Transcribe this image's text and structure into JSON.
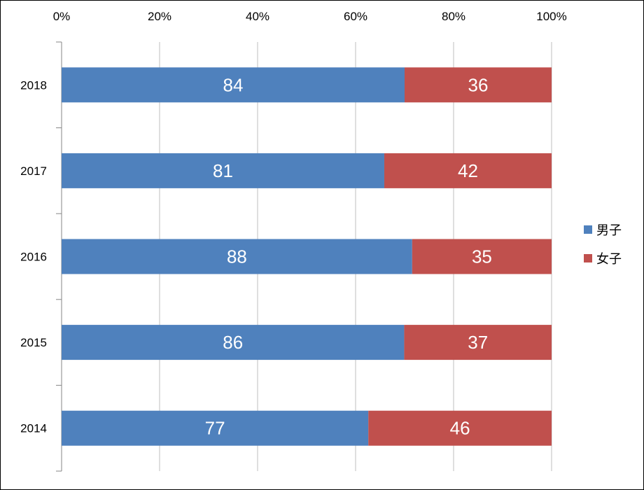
{
  "chart_data": {
    "type": "bar",
    "orientation": "horizontal",
    "stacked": "percent",
    "categories": [
      "2018",
      "2017",
      "2016",
      "2015",
      "2014"
    ],
    "series": [
      {
        "name": "男子",
        "values": [
          84,
          81,
          88,
          86,
          77
        ],
        "color": "#4F81BD"
      },
      {
        "name": "女子",
        "values": [
          36,
          42,
          35,
          37,
          46
        ],
        "color": "#C0504D"
      }
    ],
    "xticks": [
      "0%",
      "20%",
      "40%",
      "60%",
      "80%",
      "100%"
    ],
    "xlim": [
      0,
      100
    ],
    "xaxis_position": "top",
    "grid": true,
    "legend_position": "right",
    "data_labels": true,
    "title": "",
    "xlabel": "",
    "ylabel": ""
  }
}
